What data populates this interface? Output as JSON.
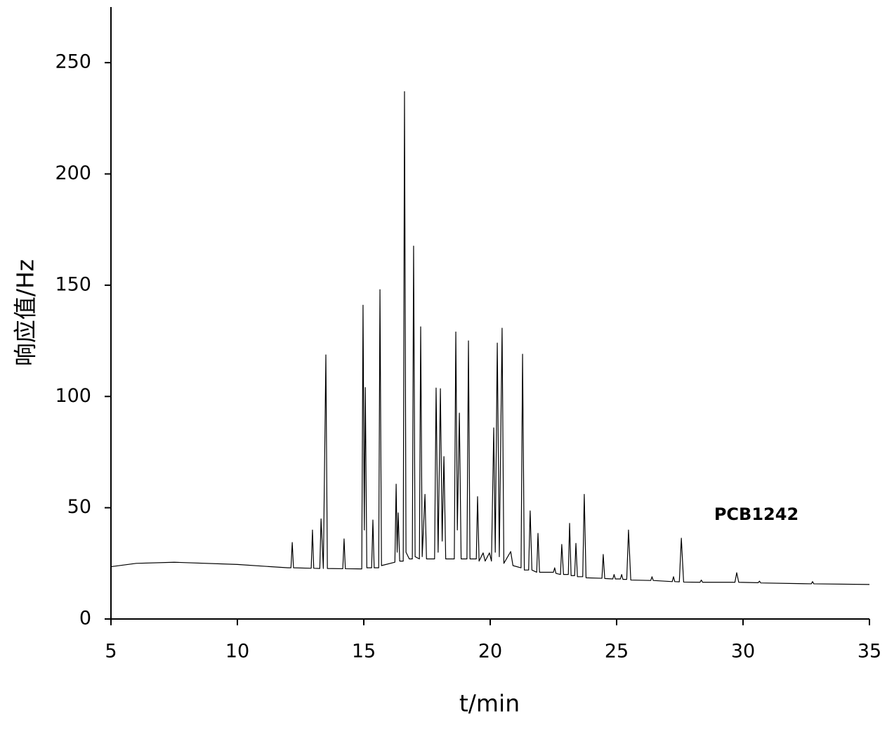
{
  "chart_data": {
    "type": "line",
    "x_label": "t/min",
    "y_label": "响应值/Hz",
    "annotation": "PCB1242",
    "color": "#000000",
    "xlim": [
      5,
      35
    ],
    "xticks": [
      5,
      10,
      15,
      20,
      25,
      30,
      35
    ],
    "ylim": [
      0,
      275
    ],
    "yticks": [
      0,
      50,
      100,
      150,
      200,
      250
    ],
    "grid": false,
    "x": [
      5,
      6,
      7.5,
      10,
      12,
      12.12,
      12.17,
      12.22,
      12.92,
      12.97,
      13.02,
      13.26,
      13.31,
      13.4,
      13.5,
      13.56,
      14.17,
      14.22,
      14.27,
      14.92,
      14.97,
      15.02,
      15.06,
      15.12,
      15.31,
      15.36,
      15.41,
      15.59,
      15.64,
      15.7,
      16.23,
      16.28,
      16.32,
      16.36,
      16.42,
      16.56,
      16.61,
      16.67,
      16.8,
      16.92,
      16.97,
      17.03,
      17.2,
      17.25,
      17.31,
      17.42,
      17.48,
      17.8,
      17.86,
      17.94,
      18.03,
      18.1,
      18.17,
      18.24,
      18.58,
      18.64,
      18.7,
      18.78,
      18.85,
      19.08,
      19.14,
      19.2,
      19.45,
      19.5,
      19.56,
      19.72,
      19.8,
      19.97,
      20.05,
      20.14,
      20.2,
      20.28,
      20.36,
      20.47,
      20.54,
      20.81,
      20.9,
      21.22,
      21.28,
      21.35,
      21.52,
      21.58,
      21.65,
      21.84,
      21.89,
      21.95,
      22.5,
      22.55,
      22.6,
      22.78,
      22.83,
      22.9,
      23.09,
      23.14,
      23.2,
      23.34,
      23.39,
      23.45,
      23.66,
      23.72,
      23.79,
      24.42,
      24.47,
      24.53,
      24.85,
      24.9,
      24.95,
      25.15,
      25.2,
      25.25,
      25.4,
      25.47,
      25.56,
      26.35,
      26.4,
      26.45,
      27.2,
      27.25,
      27.3,
      27.48,
      27.56,
      27.65,
      28.3,
      28.35,
      28.4,
      29.68,
      29.75,
      29.83,
      30.6,
      30.65,
      30.7,
      32.7,
      32.75,
      32.8,
      35
    ],
    "values": [
      23.5,
      25,
      25.5,
      24.5,
      23,
      23,
      34.4,
      23,
      22.8,
      40,
      22.8,
      22.7,
      45,
      22.7,
      118.7,
      22.7,
      22.6,
      36,
      22.6,
      22.5,
      141,
      40,
      104,
      23,
      23,
      44.5,
      23,
      23,
      148,
      24,
      25.5,
      60.6,
      30,
      47.7,
      26,
      26,
      237,
      30,
      27,
      27,
      167.6,
      28,
      27,
      131.3,
      28,
      56,
      27,
      27,
      103.8,
      30,
      103.5,
      35,
      73,
      27,
      27,
      129,
      40,
      92.5,
      27,
      27,
      125,
      27,
      27,
      55,
      26,
      29.7,
      26,
      29.7,
      26,
      85.9,
      30,
      124,
      28,
      130.7,
      25,
      30.3,
      24,
      23,
      119,
      22,
      22,
      48.6,
      22,
      21,
      38.5,
      21,
      21,
      23,
      20.5,
      20,
      33.5,
      20,
      20,
      43,
      19.5,
      19.5,
      34,
      19,
      19,
      56,
      18.5,
      18.3,
      29,
      18.2,
      18,
      20,
      18,
      18,
      20,
      17.8,
      17.8,
      40,
      17.5,
      17.3,
      19,
      17.3,
      16.8,
      19,
      16.8,
      16.7,
      36.3,
      16.6,
      16.5,
      17.5,
      16.5,
      16.5,
      20.8,
      16.5,
      16.3,
      17,
      16.2,
      15.8,
      16.8,
      15.8,
      15.5
    ]
  }
}
